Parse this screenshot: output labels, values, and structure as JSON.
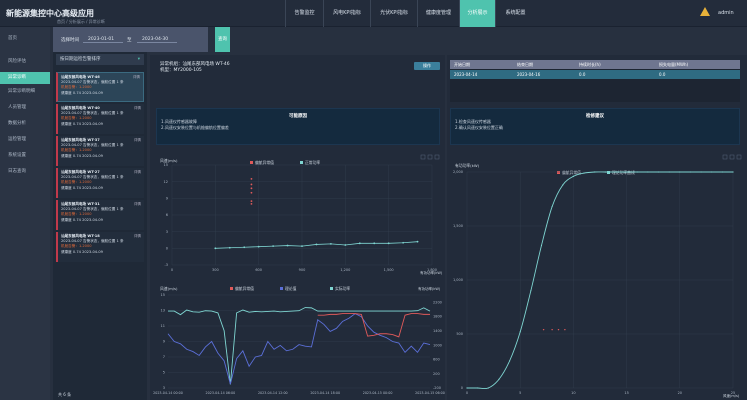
{
  "header": {
    "title": "新能源集控中心高级应用",
    "nav": [
      "告警监控",
      "风电KPI指标",
      "光伏KPI指标",
      "健康度管理",
      "分析展示",
      "系统配置"
    ],
    "active_nav": 4,
    "user": "admin",
    "warning_icon": "warning-icon"
  },
  "sidebar": {
    "items": [
      "首页",
      "风险评估",
      "异常诊断",
      "异常诊断明细",
      "人员管理",
      "数据分析",
      "运检管理",
      "系统设置",
      "日志查询"
    ],
    "active": 2
  },
  "breadcrumb": "首页 / 分析展示 / 异常诊断",
  "filter": {
    "label": "选择时间",
    "start": "2023-01-01",
    "sep": "至",
    "end": "2023-04-30",
    "query_button": "查询"
  },
  "list": {
    "title": "按日期运检告警排序",
    "cards": [
      {
        "title": "汕尾东部风电场 WT-46",
        "time": "详情",
        "l1": "2023-04-07 告警状态，偏航位置 1 条",
        "l2": "机舱告警：1.2000",
        "l3": "健康度 0.74 2023-04-09"
      },
      {
        "title": "汕尾东部风电场 WT-40",
        "time": "详情",
        "l1": "2023-04-07 告警状态，偏航位置 1 条",
        "l2": "机舱告警：1.2000",
        "l3": "健康度 0.74 2023-04-09"
      },
      {
        "title": "汕尾东部风电场 WT-37",
        "time": "详情",
        "l1": "2023-04-07 告警状态，偏航位置 1 条",
        "l2": "机舱告警：1.2000",
        "l3": "健康度 0.74 2023-04-09"
      },
      {
        "title": "汕尾东部风电场 WT-27",
        "time": "详情",
        "l1": "2023-04-07 告警状态，偏航位置 1 条",
        "l2": "机舱告警：1.2000",
        "l3": "健康度 0.74 2023-04-09"
      },
      {
        "title": "汕尾东部风电场 WT-31",
        "time": "详情",
        "l1": "2023-04-07 告警状态，偏航位置 1 条",
        "l2": "机舱告警：1.2000",
        "l3": "健康度 0.74 2023-04-09"
      },
      {
        "title": "汕尾东部风电场 WT-18",
        "time": "详情",
        "l1": "2023-04-07 告警状态，偏航位置 1 条",
        "l2": "机舱告警：1.2000",
        "l3": "健康度 0.74 2023-04-09"
      }
    ],
    "footer": "共 6 条"
  },
  "detail": {
    "line1": "异常机组：汕尾东部风电场 WT-46",
    "line2": "机型：MY2000-105",
    "download": "操作"
  },
  "cause": {
    "title": "可能原因",
    "lines": [
      "1.风速仪传感器故障",
      "2.风速仪安装位置与机舱偏航位置偏差"
    ]
  },
  "table": {
    "headers": [
      "开始日期",
      "结束日期",
      "持续时长(h)",
      "损失电量(MWh)"
    ],
    "row": [
      "2023-04-14",
      "2023-04-16",
      "0.0",
      "0.0"
    ]
  },
  "advice": {
    "title": "检修建议",
    "lines": [
      "1.检查风速仪传感器",
      "2.确认风速仪安装位置正确"
    ]
  },
  "colors": {
    "accent": "#4fc3ae",
    "red": "#e05a5a",
    "blue": "#5b6fd8",
    "cyan": "#7fd6d2"
  },
  "chart_data": [
    {
      "type": "scatter",
      "ylabel": "风速(m/s)",
      "xlabel": "有功功率(kW)",
      "legend": [
        "偏航异常值",
        "正常功率"
      ],
      "xlim": [
        0,
        1800
      ],
      "ylim": [
        -3,
        15
      ],
      "xticks": [
        0,
        300,
        600,
        900,
        1200,
        1500,
        1800
      ],
      "yticks": [
        -3,
        0,
        3,
        6,
        9,
        12,
        15
      ],
      "series": [
        {
          "name": "偏航异常值",
          "color": "#e05a5a",
          "x": [
            550,
            550,
            550,
            550,
            550,
            550
          ],
          "y": [
            8,
            8.5,
            10,
            10.8,
            11.5,
            12.5
          ]
        },
        {
          "name": "正常功率",
          "color": "#7fd6d2",
          "x": [
            300,
            400,
            500,
            600,
            700,
            800,
            900,
            1000,
            1100,
            1200,
            1300,
            1400,
            1500,
            1600,
            1700
          ],
          "y": [
            0,
            0.1,
            0.2,
            0.3,
            0.4,
            0.5,
            0.4,
            0.7,
            0.8,
            0.6,
            0.9,
            0.9,
            0.9,
            1.0,
            1.2
          ]
        }
      ]
    },
    {
      "type": "line",
      "ylabel": "风速(m/s)",
      "ylabel_right": "有功功率(kW)",
      "legend": [
        "偏航异常值",
        "理论值",
        "实际功率"
      ],
      "ylim": [
        3,
        15
      ],
      "ylim_right": [
        -200,
        2400
      ],
      "yticks": [
        3,
        5,
        7,
        9,
        11,
        13,
        15
      ],
      "yticks_right": [
        -200,
        200,
        600,
        1000,
        1400,
        1800,
        2200
      ],
      "xticks": [
        "2023-04-14 00:00",
        "2023-04-14 06:00",
        "2023-04-14 12:00",
        "2023-04-14 18:00",
        "2023-04-15 00:00",
        "2023-04-15 06:00"
      ],
      "series": [
        {
          "name": "实际功率",
          "color": "#7fd6d2",
          "axis": "right",
          "y": [
            1950,
            1950,
            1850,
            1980,
            1930,
            1920,
            1960,
            1950,
            1900,
            1400,
            -100,
            1900,
            1980,
            1920,
            1940,
            1930,
            1940,
            1950,
            1930,
            1940,
            1950,
            1960,
            2050,
            2040,
            1950,
            1950,
            1950,
            1950,
            1950,
            1950,
            1950,
            1950,
            1950,
            1950,
            1950,
            1950,
            1950,
            1950,
            1950,
            1950,
            1960,
            2040,
            1950
          ]
        },
        {
          "name": "理论值",
          "color": "#5b6fd8",
          "axis": "left",
          "y": [
            10,
            9,
            8.7,
            8,
            7.7,
            7.2,
            8.3,
            9,
            7.5,
            6.5,
            3.5,
            6.8,
            7.8,
            5.8,
            7,
            7.2,
            9,
            8,
            8.5,
            7.8,
            8,
            8.6,
            8.4,
            8.3,
            11.8,
            11.2,
            10.3,
            10.7,
            11.6,
            12,
            12.6,
            12.2,
            11,
            10.2,
            9.8,
            9.5,
            9,
            8.8,
            7.6,
            8.4,
            7.6,
            8.8,
            8.6
          ]
        },
        {
          "name": "偏航异常值",
          "color": "#e05a5a",
          "axis": "left",
          "start": 24,
          "y": [
            12.4,
            12.4,
            12.5,
            12.5,
            12.6,
            12.6,
            12.6,
            12.5,
            9.7,
            9.8,
            10,
            10,
            9.9,
            9.6,
            12.4,
            12.6,
            12.6,
            12.5,
            12.5
          ]
        }
      ]
    },
    {
      "type": "line",
      "ylabel": "有功功率(kW)",
      "xlabel": "风速(m/s)",
      "legend": [
        "偏航异常值",
        "理论功率曲线"
      ],
      "xlim": [
        0,
        25
      ],
      "ylim": [
        0,
        2000
      ],
      "xticks": [
        0,
        5,
        10,
        15,
        20,
        25
      ],
      "yticks": [
        0,
        500,
        1000,
        1500,
        2000
      ],
      "series": [
        {
          "name": "理论功率曲线",
          "color": "#7fd6d2",
          "x": [
            0,
            1,
            2,
            3,
            4,
            5,
            6,
            7,
            8,
            9,
            10,
            11,
            12,
            13,
            14,
            15,
            16,
            17,
            18,
            19,
            20,
            21,
            22,
            23,
            24,
            25
          ],
          "y": [
            0,
            0,
            0,
            80,
            250,
            520,
            900,
            1320,
            1680,
            1880,
            1960,
            1990,
            2000,
            2000,
            2000,
            2000,
            2000,
            2000,
            2000,
            2000,
            2000,
            2000,
            2000,
            2000,
            2000,
            2000
          ]
        },
        {
          "name": "偏航异常值",
          "color": "#e05a5a",
          "x": [
            7.2,
            8,
            8.6,
            9.2
          ],
          "y": [
            540,
            540,
            540,
            540
          ]
        }
      ]
    }
  ]
}
